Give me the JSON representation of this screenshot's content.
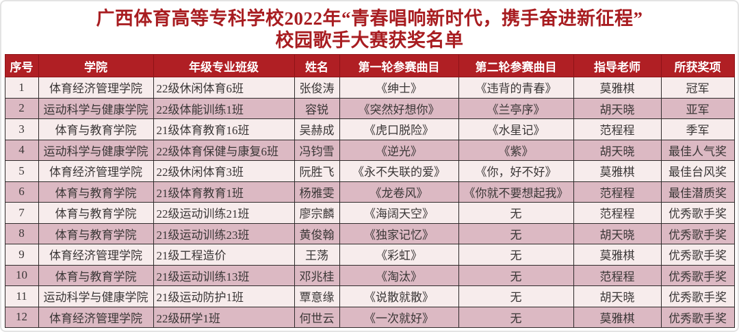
{
  "page": {
    "title_line1": "广西体育高等专科学校2022年“青春唱响新时代，携手奋进新征程”",
    "title_line2": "校园歌手大赛获奖名单"
  },
  "colors": {
    "header_bg": "#b01f24",
    "title_red": "#a81d21",
    "row_odd": "#f7ecec",
    "row_even": "#dcb9c3",
    "border": "#2e2a2a"
  },
  "table": {
    "headers": [
      "序号",
      "学院",
      "年级专业班级",
      "姓名",
      "第一轮参赛曲目",
      "第二轮参赛曲目",
      "指导老师",
      "所获奖项"
    ],
    "rows": [
      [
        "1",
        "体育经济管理学院",
        "22级休闲体育6班",
        "张俊涛",
        "《绅士》",
        "《违背的青春》",
        "莫雅棋",
        "冠军"
      ],
      [
        "2",
        "运动科学与健康学院",
        "22级体能训练1班",
        "容锐",
        "《突然好想你》",
        "《兰亭序》",
        "胡天晓",
        "亚军"
      ],
      [
        "3",
        "体育与教育学院",
        "21级体育教育16班",
        "吴赫成",
        "《虎口脱险》",
        "《水星记》",
        "范程程",
        "季军"
      ],
      [
        "4",
        "运动科学与健康学院",
        "22级体育保健与康复6班",
        "冯钧雪",
        "《逆光》",
        "《紫》",
        "胡天晓",
        "最佳人气奖"
      ],
      [
        "5",
        "体育经济管理学院",
        "22级休闲体育3班",
        "阮胜飞",
        "《永不失联的爱》",
        "《你，好不好》",
        "莫雅棋",
        "最佳台风奖"
      ],
      [
        "6",
        "体育与教育学院",
        "21级体育教育1班",
        "杨雅雯",
        "《龙卷风》",
        "《你就不要想起我》",
        "范程程",
        "最佳潜质奖"
      ],
      [
        "7",
        "体育与教育学院",
        "22级运动训练21班",
        "廖宗麟",
        "《海阔天空》",
        "无",
        "范程程",
        "优秀歌手奖"
      ],
      [
        "8",
        "体育与教育学院",
        "21级运动训练23班",
        "黄俊翰",
        "《独家记忆》",
        "无",
        "胡天晓",
        "优秀歌手奖"
      ],
      [
        "9",
        "体育经济管理学院",
        "21级工程造价",
        "王荡",
        "《彩虹》",
        "无",
        "莫雅棋",
        "优秀歌手奖"
      ],
      [
        "10",
        "体育与教育学院",
        "21级运动训练13班",
        "邓兆桂",
        "《淘汰》",
        "无",
        "范程程",
        "优秀歌手奖"
      ],
      [
        "11",
        "运动科学与健康学院",
        "21级运动防护1班",
        "覃意缘",
        "《说散就散》",
        "无",
        "胡天晓",
        "优秀歌手奖"
      ],
      [
        "12",
        "体育经济管理学院",
        "22级研学1班",
        "何世云",
        "《一次就好》",
        "无",
        "莫雅棋",
        "优秀歌手奖"
      ]
    ]
  }
}
